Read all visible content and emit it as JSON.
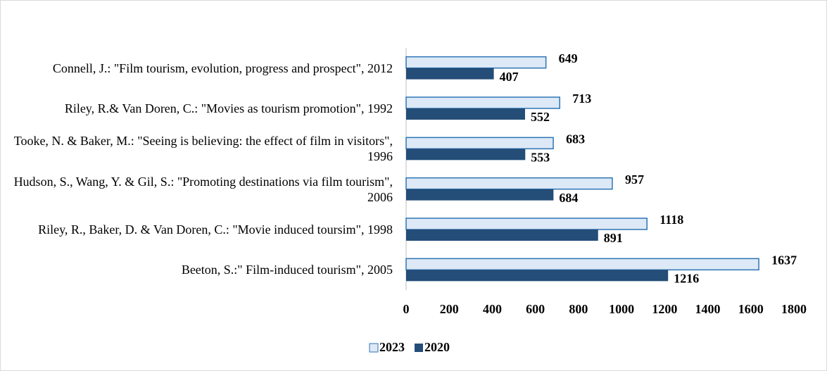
{
  "chart_data": {
    "type": "hbar",
    "categories": [
      "Connell, J.: \"Film tourism, evolution, progress and prospect\", 2012",
      "Riley, R.& Van Doren, C.: \"Movies as tourism promotion\", 1992",
      "Tooke, N. & Baker, M.: \"Seeing is believing: the effect of film in visitors\", 1996",
      "Hudson, S., Wang, Y. & Gil, S.: \"Promoting destinations via film tourism\", 2006",
      "Riley, R., Baker, D. & Van Doren, C.: \"Movie induced toursim\", 1998",
      "Beeton, S.:\" Film-induced tourism\", 2005"
    ],
    "series": [
      {
        "name": "2023",
        "color": "#dde9f6",
        "values": [
          649,
          713,
          683,
          957,
          1118,
          1637
        ]
      },
      {
        "name": "2020",
        "color": "#244d78",
        "values": [
          407,
          552,
          553,
          684,
          891,
          1216
        ]
      }
    ],
    "xlim": [
      0,
      1800
    ],
    "xticks": [
      0,
      200,
      400,
      600,
      800,
      1000,
      1200,
      1400,
      1600,
      1800
    ],
    "legend": "bottom"
  }
}
